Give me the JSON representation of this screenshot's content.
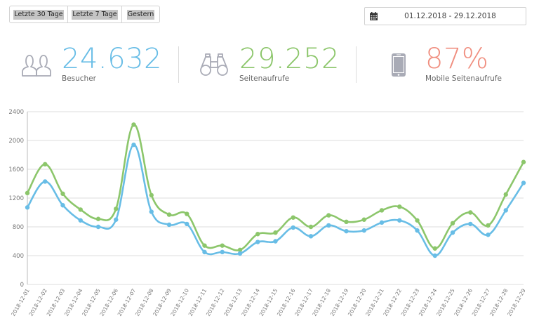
{
  "toolbar": {
    "ranges": [
      "Letzte 30 Tage",
      "Letzte 7 Tage",
      "Gestern"
    ],
    "date_range": "01.12.2018 - 29.12.2018"
  },
  "stats": [
    {
      "value": "24.632",
      "label": "Besucher",
      "color": "#68bde6",
      "icon": "users-icon"
    },
    {
      "value": "29.252",
      "label": "Seitenaufrufe",
      "color": "#8cc66b",
      "icon": "binoculars-icon"
    },
    {
      "value": "87%",
      "label": "Mobile Seitenaufrufe",
      "color": "#f08f80",
      "icon": "smartphone-icon"
    }
  ],
  "colors": {
    "visitors": "#68bde6",
    "pageviews": "#8cc66b",
    "mobile": "#f08f80",
    "grid": "#dddddd"
  },
  "chart_data": {
    "type": "line",
    "categories": [
      "2018-12-01",
      "2018-12-02",
      "2018-12-03",
      "2018-12-04",
      "2018-12-05",
      "2018-12-06",
      "2018-12-07",
      "2018-12-08",
      "2018-12-09",
      "2018-12-10",
      "2018-12-11",
      "2018-12-12",
      "2018-12-13",
      "2018-12-14",
      "2018-12-15",
      "2018-12-16",
      "2018-12-17",
      "2018-12-18",
      "2018-12-19",
      "2018-12-20",
      "2018-12-21",
      "2018-12-22",
      "2018-12-23",
      "2018-12-24",
      "2018-12-25",
      "2018-12-26",
      "2018-12-27",
      "2018-12-28",
      "2018-12-29"
    ],
    "series": [
      {
        "color": "#8cc66b",
        "values": [
          1270,
          1670,
          1260,
          1040,
          910,
          1050,
          2220,
          1240,
          970,
          980,
          540,
          540,
          480,
          700,
          720,
          930,
          800,
          960,
          870,
          900,
          1030,
          1080,
          890,
          500,
          850,
          1000,
          820,
          1250,
          1700
        ]
      },
      {
        "color": "#68bde6",
        "values": [
          1070,
          1430,
          1100,
          890,
          800,
          900,
          1940,
          1010,
          830,
          840,
          450,
          450,
          430,
          590,
          600,
          790,
          670,
          820,
          740,
          750,
          860,
          890,
          750,
          400,
          720,
          840,
          690,
          1030,
          1410
        ]
      }
    ],
    "yticks": [
      0,
      400,
      800,
      1200,
      1600,
      2000,
      2400
    ],
    "ylim": [
      0,
      2400
    ],
    "grid": true
  }
}
